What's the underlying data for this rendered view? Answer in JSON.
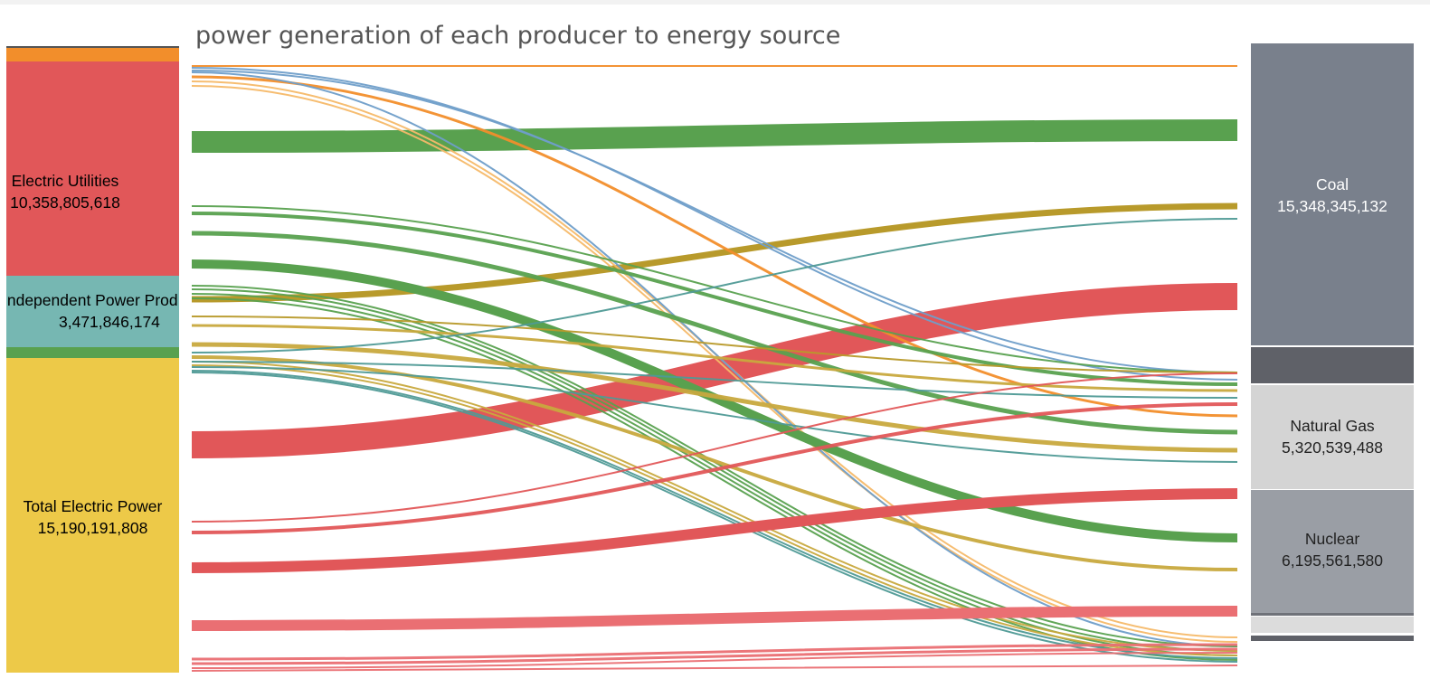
{
  "chart_data": {
    "type": "sankey",
    "title": "power generation of each producer to energy source",
    "producers": [
      {
        "name": "Electric Utilities",
        "value": "10,358,805,618",
        "value_num": 10358805618,
        "color": "#e15759",
        "label_color": "#222222"
      },
      {
        "name": "Independent Power Producers",
        "display_name": "Independent Power Prod",
        "value": "3,471,846,174",
        "value_num": 3471846174,
        "color": "#76b7b2",
        "label_color": "#222222"
      },
      {
        "name": "Total Electric Power",
        "value": "15,190,191,808",
        "value_num": 15190191808,
        "color": "#edc948",
        "label_color": "#222222"
      }
    ],
    "producer_minor_segments": [
      {
        "color": "#f28e2b"
      },
      {
        "color": "#59a14f"
      }
    ],
    "sources": [
      {
        "name": "Coal",
        "value": "15,348,345,132",
        "value_num": 15348345132,
        "color": "#79808c",
        "label_color": "#ffffff"
      },
      {
        "name": "Natural Gas",
        "value": "5,320,539,488",
        "value_num": 5320539488,
        "color": "#d4d4d4",
        "label_color": "#222222"
      },
      {
        "name": "Nuclear",
        "value": "6,195,561,580",
        "value_num": 6195561580,
        "color": "#9a9ea5",
        "label_color": "#222222"
      }
    ],
    "source_minor_segments": [
      {
        "color": "#5f6168"
      },
      {
        "color": "#b9bbbf"
      },
      {
        "color": "#dcdcdc"
      },
      {
        "color": "#6f7279"
      }
    ],
    "flow_colors": {
      "red": "#e15759",
      "green": "#59a14f",
      "gold": "#b89a2b",
      "ochre": "#c8a93e",
      "orange": "#f28e2b",
      "blue": "#6f9ec9",
      "teal": "#4f9a96",
      "lightorange": "#f5b969",
      "salmon": "#ea6f73"
    }
  }
}
